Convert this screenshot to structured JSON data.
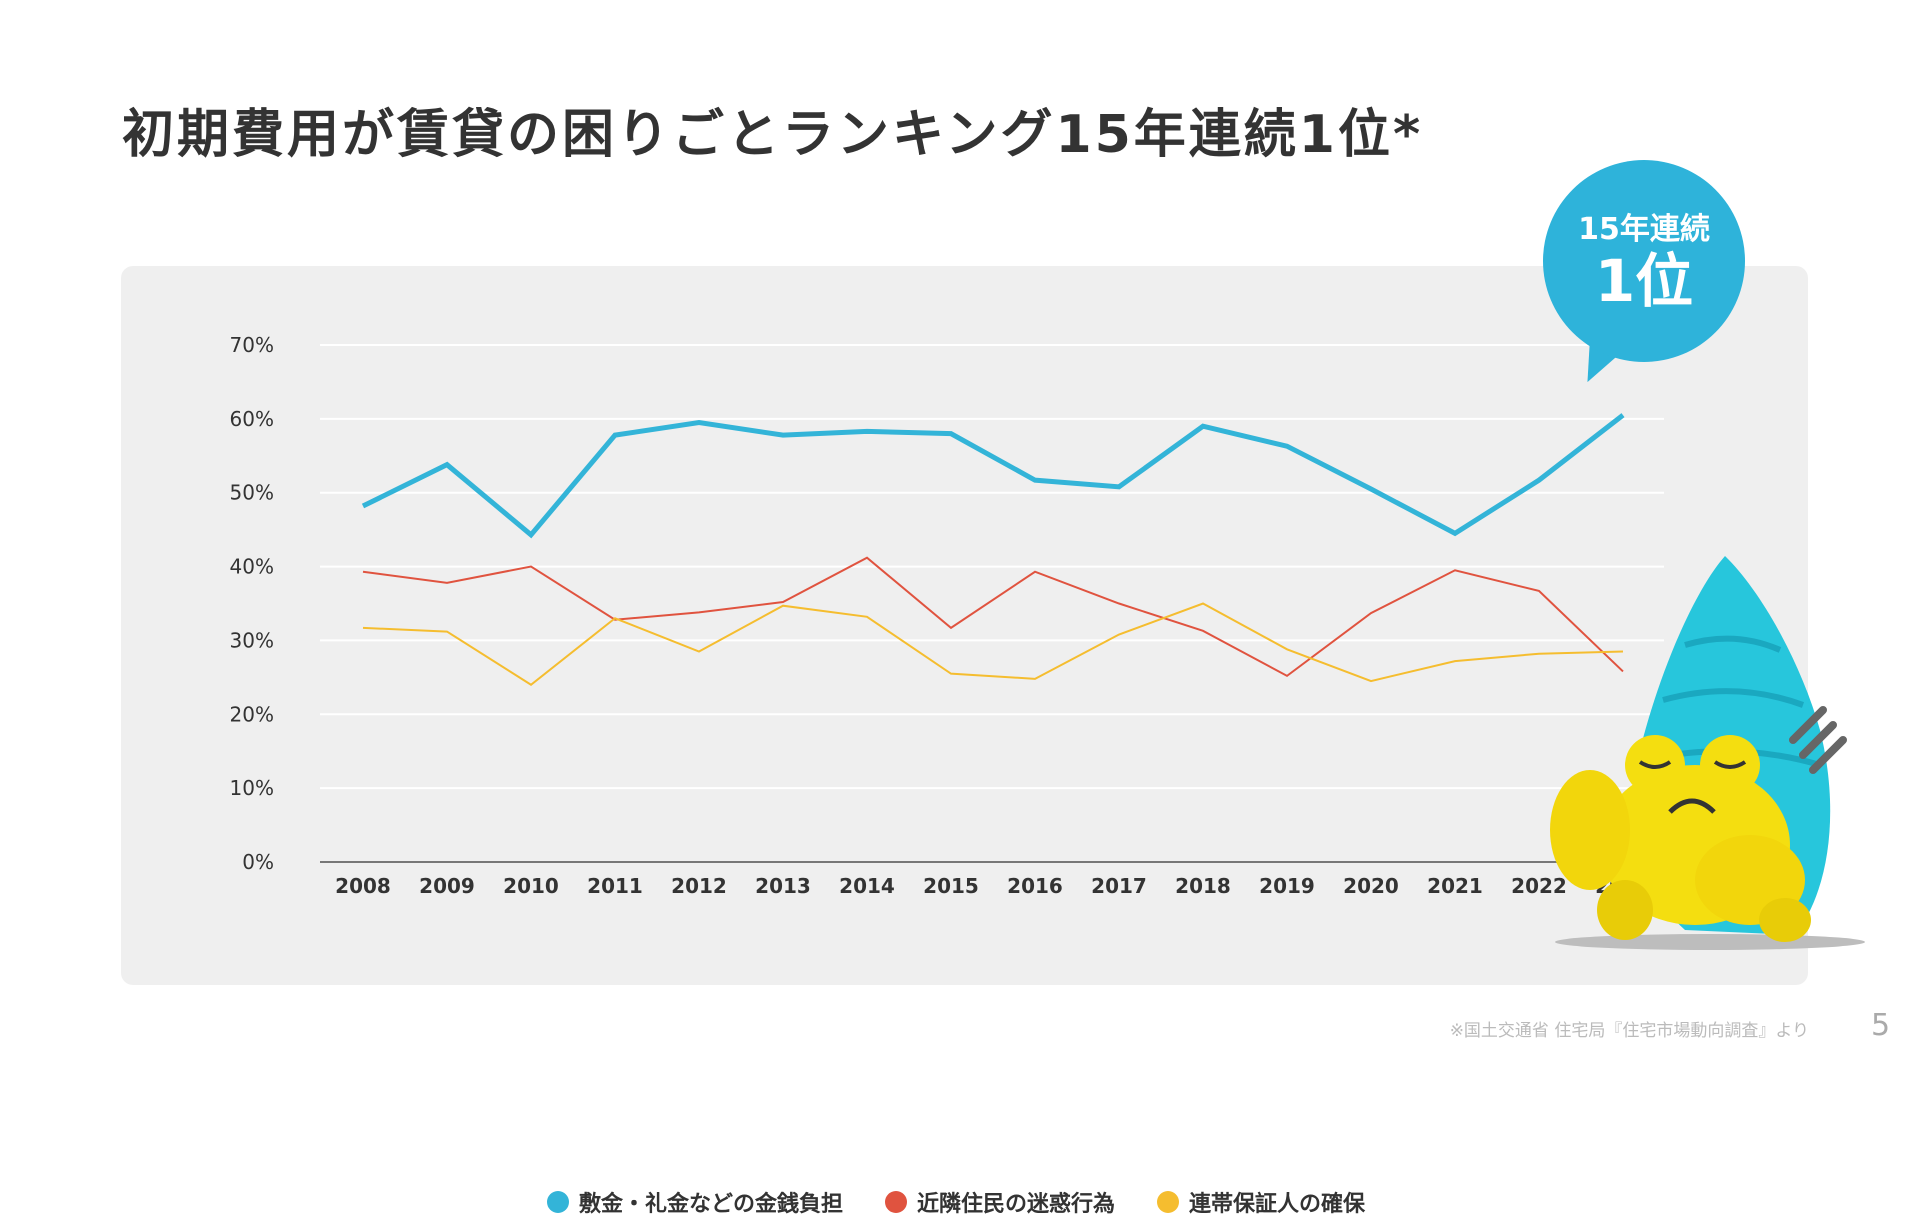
{
  "title": "初期費用が賃貸の困りごとランキング15年連続1位*",
  "badge": {
    "line1": "15年連続",
    "line2": "1位",
    "color": "#2eb3da"
  },
  "footer": {
    "source": "※国土交通省 住宅局『住宅市場動向調査』より",
    "page_number": "5"
  },
  "chart_data": {
    "type": "line",
    "x": [
      "2008",
      "2009",
      "2010",
      "2011",
      "2012",
      "2013",
      "2014",
      "2015",
      "2016",
      "2017",
      "2018",
      "2019",
      "2020",
      "2021",
      "2022",
      "2023"
    ],
    "yticks": [
      "0%",
      "10%",
      "20%",
      "30%",
      "40%",
      "50%",
      "60%",
      "70%"
    ],
    "ylim": [
      0,
      70
    ],
    "grid": true,
    "legend_position": "bottom",
    "series": [
      {
        "name": "敷金・礼金などの金銭負担",
        "color": "#33b4d8",
        "values": [
          48.2,
          53.8,
          44.3,
          57.8,
          59.5,
          57.8,
          58.3,
          58.0,
          51.7,
          50.8,
          59.0,
          56.3,
          50.5,
          44.5,
          51.7,
          60.5
        ]
      },
      {
        "name": "近隣住民の迷惑行為",
        "color": "#e0533f",
        "values": [
          39.3,
          37.8,
          40.0,
          32.8,
          33.8,
          35.2,
          41.2,
          31.7,
          39.3,
          35.0,
          31.3,
          25.2,
          33.7,
          39.5,
          36.7,
          25.8
        ]
      },
      {
        "name": "連帯保証人の確保",
        "color": "#f5bd2f",
        "values": [
          31.7,
          31.2,
          24.0,
          33.0,
          28.5,
          34.7,
          33.2,
          25.5,
          24.8,
          30.8,
          35.0,
          28.8,
          24.5,
          27.2,
          28.2,
          28.5
        ]
      }
    ]
  }
}
